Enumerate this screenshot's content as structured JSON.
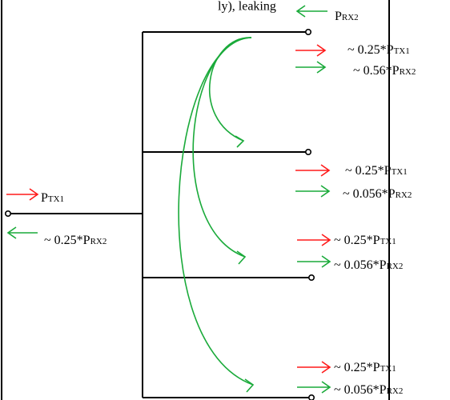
{
  "header_fragment": "ly), leaking",
  "labels": {
    "prx2": {
      "base": "P",
      "sub": "RX2"
    },
    "ptx1_input": {
      "base": "P",
      "sub": "TX1"
    },
    "input_leak": {
      "base": "~ 0.25*P",
      "sub": "RX2"
    },
    "out1_tx": {
      "base": "~ 0.25*P",
      "sub": "TX1"
    },
    "out1_rx": {
      "base": "~ 0.56*P",
      "sub": "RX2"
    },
    "out2_tx": {
      "base": "~ 0.25*P",
      "sub": "TX1"
    },
    "out2_rx": {
      "base": "~ 0.056*P",
      "sub": "RX2"
    },
    "out3_tx": {
      "base": "~ 0.25*P",
      "sub": "TX1"
    },
    "out3_rx": {
      "base": "~ 0.056*P",
      "sub": "RX2"
    },
    "out4_tx": {
      "base": "~ 0.25*P",
      "sub": "TX1"
    },
    "out4_rx": {
      "base": "~ 0.056*P",
      "sub": "RX2"
    }
  },
  "colors": {
    "tx_arrow": "#ff1a1a",
    "rx_arrow": "#1aaa3a",
    "wire": "#000000"
  }
}
